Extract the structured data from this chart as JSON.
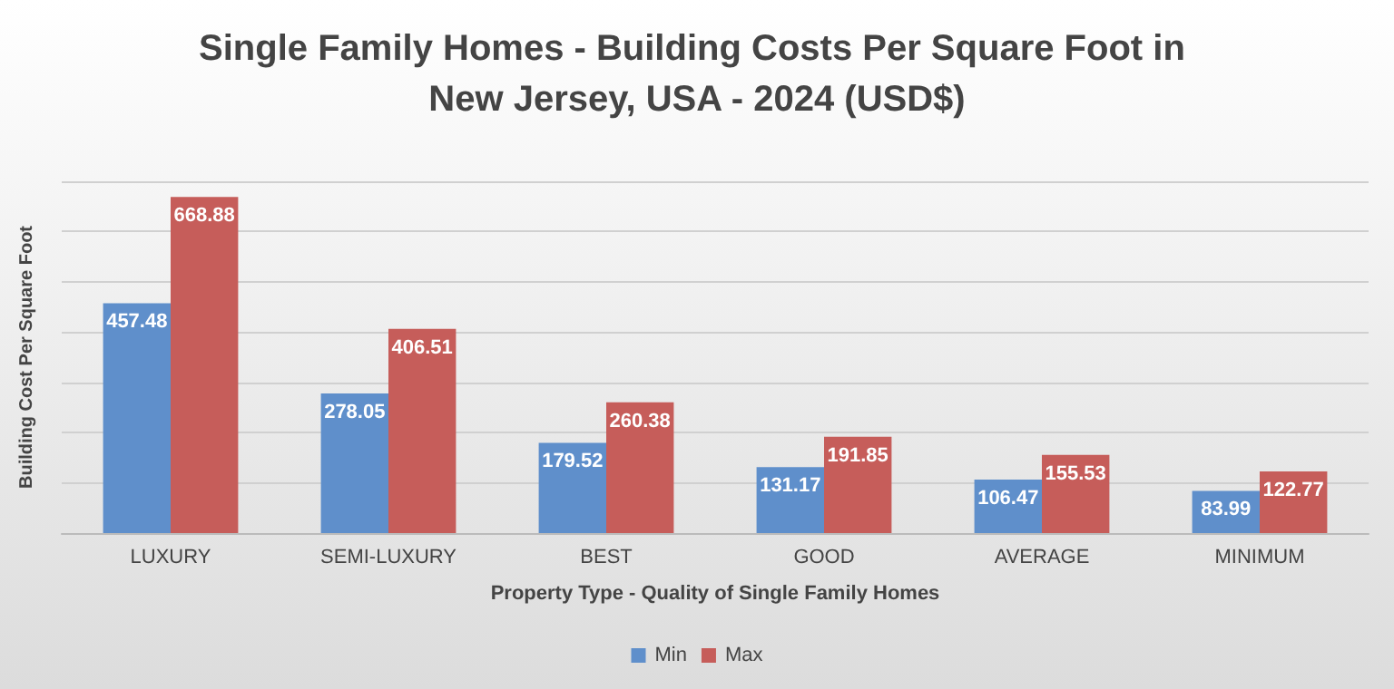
{
  "chart_data": {
    "type": "bar",
    "title": "Single Family Homes - Building Costs Per Square Foot in New Jersey, USA - 2024 (USD$)",
    "xlabel": "Property Type - Quality of Single Family Homes",
    "ylabel": "Building Cost Per Square Foot",
    "categories": [
      "LUXURY",
      "SEMI-LUXURY",
      "BEST",
      "GOOD",
      "AVERAGE",
      "MINIMUM"
    ],
    "series": [
      {
        "name": "Min",
        "color": "#5f8fcb",
        "values": [
          457.48,
          278.05,
          179.52,
          131.17,
          106.47,
          83.99
        ]
      },
      {
        "name": "Max",
        "color": "#c65d5a",
        "values": [
          668.88,
          406.51,
          260.38,
          191.85,
          155.53,
          122.77
        ]
      }
    ],
    "ylim": [
      0,
      700
    ],
    "yticks": [
      {
        "value": 0,
        "label": null
      },
      {
        "value": 100,
        "label": null
      },
      {
        "value": 200,
        "label": null
      },
      {
        "value": 300,
        "label": null
      },
      {
        "value": 400,
        "label": null
      },
      {
        "value": 500,
        "label": null
      },
      {
        "value": 600,
        "label": null
      },
      {
        "value": 700,
        "label": null
      }
    ],
    "tick_labels": "x",
    "grid": "y",
    "legend": "bottom",
    "data_labels": true
  }
}
